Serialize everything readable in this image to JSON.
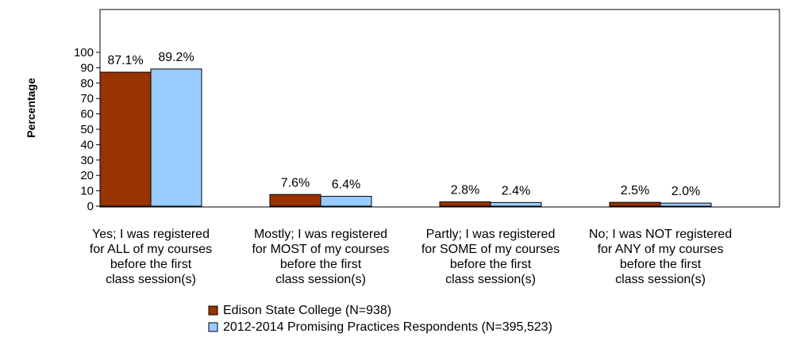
{
  "chart_data": {
    "type": "bar",
    "ylabel": "Percentage",
    "ylim": [
      0,
      100
    ],
    "yticks": [
      0,
      10,
      20,
      30,
      40,
      50,
      60,
      70,
      80,
      90,
      100
    ],
    "grid": false,
    "legend_position": "bottom",
    "categories": [
      [
        "Yes; I was registered",
        "for ALL of my courses",
        "before the first",
        "class session(s)"
      ],
      [
        "Mostly; I was registered",
        "for MOST of my courses",
        "before the first",
        "class session(s)"
      ],
      [
        "Partly; I was registered",
        "for SOME of my courses",
        "before the first",
        "class session(s)"
      ],
      [
        "No; I was NOT registered",
        "for ANY of my courses",
        "before the first",
        "class session(s)"
      ]
    ],
    "series": [
      {
        "name": "Edison State College (N=938)",
        "color": "#993300",
        "values": [
          87.1,
          7.6,
          2.8,
          2.5
        ],
        "labels": [
          "87.1%",
          "7.6%",
          "2.8%",
          "2.5%"
        ]
      },
      {
        "name": "2012-2014 Promising Practices Respondents (N=395,523)",
        "color": "#99ccff",
        "values": [
          89.2,
          6.4,
          2.4,
          2.0
        ],
        "labels": [
          "89.2%",
          "6.4%",
          "2.4%",
          "2.0%"
        ]
      }
    ]
  }
}
